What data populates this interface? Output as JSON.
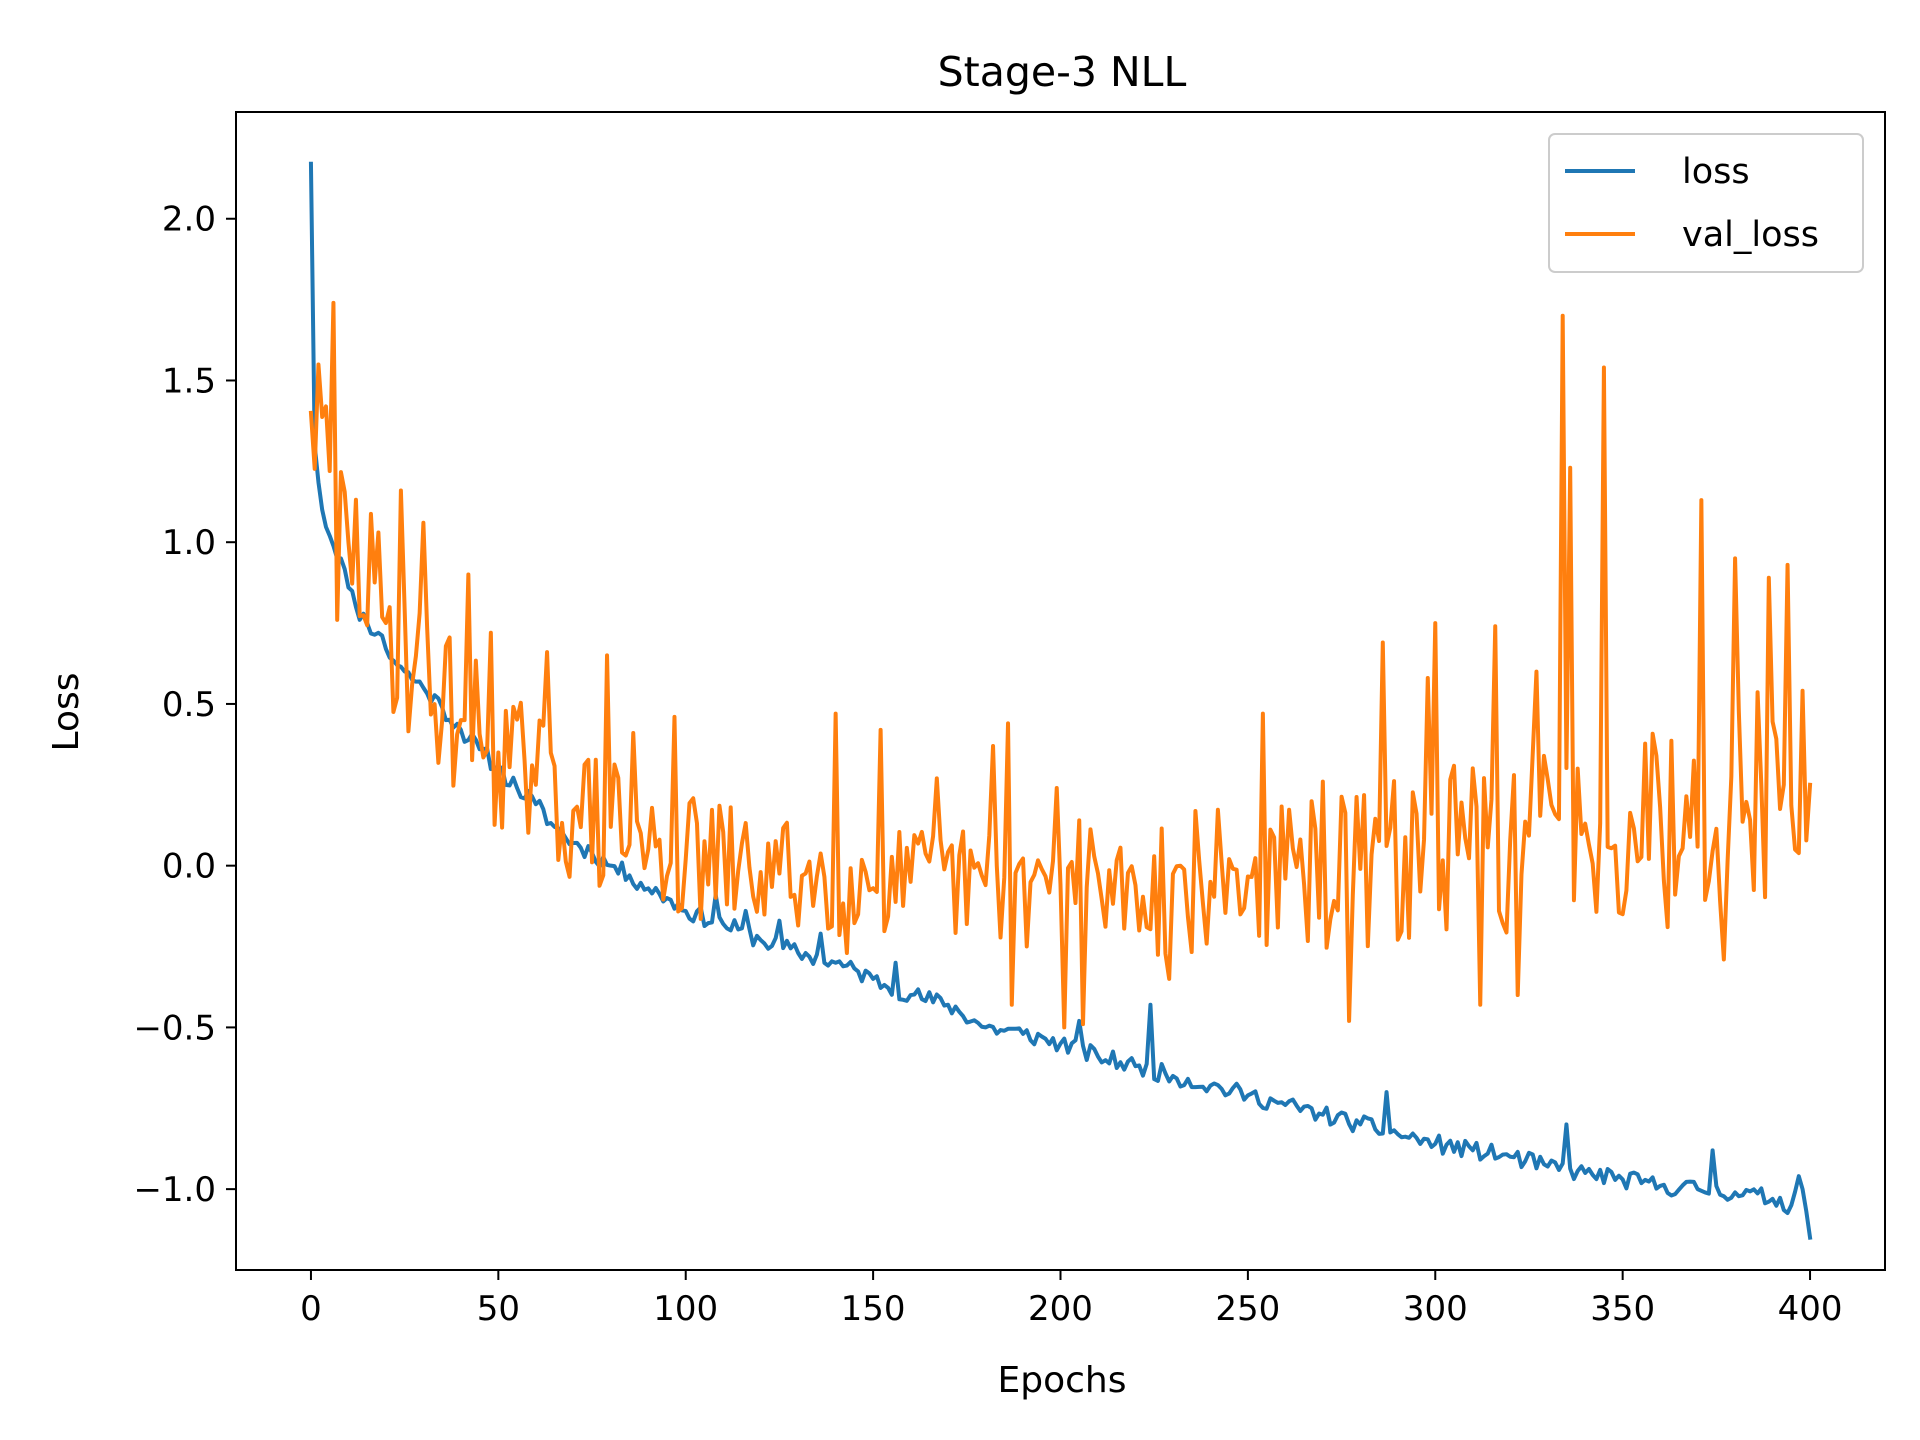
{
  "chart_data": {
    "type": "line",
    "title": "Stage-3 NLL",
    "xlabel": "Epochs",
    "ylabel": "Loss",
    "xlim": [
      -20,
      420
    ],
    "ylim": [
      -1.25,
      2.33
    ],
    "xticks": [
      0,
      50,
      100,
      150,
      200,
      250,
      300,
      350,
      400
    ],
    "xtick_labels": [
      "0",
      "50",
      "100",
      "150",
      "200",
      "250",
      "300",
      "350",
      "400"
    ],
    "yticks": [
      -1.0,
      -0.5,
      0.0,
      0.5,
      1.0,
      1.5,
      2.0
    ],
    "ytick_labels": [
      "−1.0",
      "−0.5",
      "0.0",
      "0.5",
      "1.0",
      "1.5",
      "2.0"
    ],
    "legend_position": "top-right",
    "grid": false,
    "series": [
      {
        "name": "loss",
        "color": "#1f77b4",
        "anchors": [
          [
            0,
            2.17
          ],
          [
            1,
            1.3
          ],
          [
            3,
            1.1
          ],
          [
            5,
            1.02
          ],
          [
            8,
            0.95
          ],
          [
            10,
            0.86
          ],
          [
            12,
            0.8
          ],
          [
            15,
            0.75
          ],
          [
            18,
            0.72
          ],
          [
            20,
            0.67
          ],
          [
            25,
            0.6
          ],
          [
            30,
            0.55
          ],
          [
            35,
            0.49
          ],
          [
            40,
            0.42
          ],
          [
            45,
            0.36
          ],
          [
            50,
            0.3
          ],
          [
            55,
            0.24
          ],
          [
            60,
            0.19
          ],
          [
            65,
            0.12
          ],
          [
            70,
            0.07
          ],
          [
            75,
            0.04
          ],
          [
            80,
            0.0
          ],
          [
            85,
            -0.03
          ],
          [
            90,
            -0.07
          ],
          [
            95,
            -0.1
          ],
          [
            100,
            -0.14
          ],
          [
            110,
            -0.18
          ],
          [
            120,
            -0.23
          ],
          [
            130,
            -0.27
          ],
          [
            140,
            -0.3
          ],
          [
            150,
            -0.35
          ],
          [
            160,
            -0.4
          ],
          [
            170,
            -0.43
          ],
          [
            180,
            -0.5
          ],
          [
            190,
            -0.52
          ],
          [
            200,
            -0.55
          ],
          [
            210,
            -0.59
          ],
          [
            220,
            -0.62
          ],
          [
            230,
            -0.65
          ],
          [
            240,
            -0.68
          ],
          [
            250,
            -0.71
          ],
          [
            260,
            -0.74
          ],
          [
            270,
            -0.77
          ],
          [
            280,
            -0.8
          ],
          [
            290,
            -0.83
          ],
          [
            300,
            -0.86
          ],
          [
            310,
            -0.88
          ],
          [
            320,
            -0.9
          ],
          [
            330,
            -0.93
          ],
          [
            340,
            -0.95
          ],
          [
            350,
            -0.97
          ],
          [
            360,
            -0.99
          ],
          [
            370,
            -1.0
          ],
          [
            380,
            -1.01
          ],
          [
            390,
            -1.03
          ],
          [
            395,
            -1.05
          ],
          [
            397,
            -0.96
          ],
          [
            398,
            -1.0
          ],
          [
            400,
            -1.15
          ]
        ],
        "spikes": [
          [
            205,
            -0.48
          ],
          [
            224,
            -0.43
          ],
          [
            287,
            -0.7
          ],
          [
            335,
            -0.8
          ],
          [
            374,
            -0.88
          ],
          [
            156,
            -0.3
          ],
          [
            136,
            -0.21
          ],
          [
            108,
            -0.09
          ],
          [
            116,
            -0.14
          ],
          [
            125,
            -0.17
          ]
        ],
        "noise": 0.028,
        "seed": 11
      },
      {
        "name": "val_loss",
        "color": "#ff7f0e",
        "anchors": [
          [
            0,
            1.4
          ],
          [
            5,
            1.22
          ],
          [
            10,
            1.0
          ],
          [
            20,
            0.75
          ],
          [
            30,
            0.58
          ],
          [
            40,
            0.45
          ],
          [
            50,
            0.35
          ],
          [
            60,
            0.25
          ],
          [
            70,
            0.17
          ],
          [
            80,
            0.12
          ],
          [
            90,
            0.05
          ],
          [
            100,
            0.02
          ],
          [
            120,
            -0.02
          ],
          [
            140,
            -0.04
          ],
          [
            160,
            -0.05
          ],
          [
            180,
            -0.06
          ],
          [
            200,
            -0.06
          ],
          [
            220,
            -0.06
          ],
          [
            240,
            -0.05
          ],
          [
            260,
            -0.04
          ],
          [
            280,
            -0.01
          ],
          [
            300,
            0.03
          ],
          [
            320,
            0.08
          ],
          [
            340,
            0.13
          ],
          [
            360,
            0.18
          ],
          [
            380,
            0.22
          ],
          [
            400,
            0.25
          ]
        ],
        "spikes": [
          [
            6,
            1.74
          ],
          [
            4,
            1.42
          ],
          [
            7,
            0.76
          ],
          [
            24,
            1.16
          ],
          [
            30,
            1.06
          ],
          [
            42,
            0.9
          ],
          [
            48,
            0.72
          ],
          [
            63,
            0.66
          ],
          [
            79,
            0.65
          ],
          [
            86,
            0.41
          ],
          [
            97,
            0.46
          ],
          [
            140,
            0.47
          ],
          [
            143,
            -0.27
          ],
          [
            152,
            0.42
          ],
          [
            167,
            0.27
          ],
          [
            182,
            0.37
          ],
          [
            186,
            0.44
          ],
          [
            187,
            -0.43
          ],
          [
            199,
            0.24
          ],
          [
            201,
            -0.5
          ],
          [
            205,
            0.14
          ],
          [
            206,
            -0.49
          ],
          [
            229,
            -0.35
          ],
          [
            254,
            0.47
          ],
          [
            270,
            0.26
          ],
          [
            277,
            -0.48
          ],
          [
            286,
            0.69
          ],
          [
            298,
            0.58
          ],
          [
            300,
            0.75
          ],
          [
            312,
            -0.43
          ],
          [
            316,
            0.74
          ],
          [
            322,
            -0.4
          ],
          [
            327,
            0.6
          ],
          [
            334,
            1.7
          ],
          [
            336,
            1.23
          ],
          [
            338,
            0.3
          ],
          [
            345,
            1.54
          ],
          [
            350,
            -0.15
          ],
          [
            359,
            0.34
          ],
          [
            362,
            -0.19
          ],
          [
            371,
            1.13
          ],
          [
            377,
            -0.29
          ],
          [
            380,
            0.95
          ],
          [
            389,
            0.89
          ],
          [
            394,
            0.93
          ],
          [
            396,
            0.05
          ]
        ],
        "noise": 0.17,
        "seed": 29
      }
    ]
  }
}
